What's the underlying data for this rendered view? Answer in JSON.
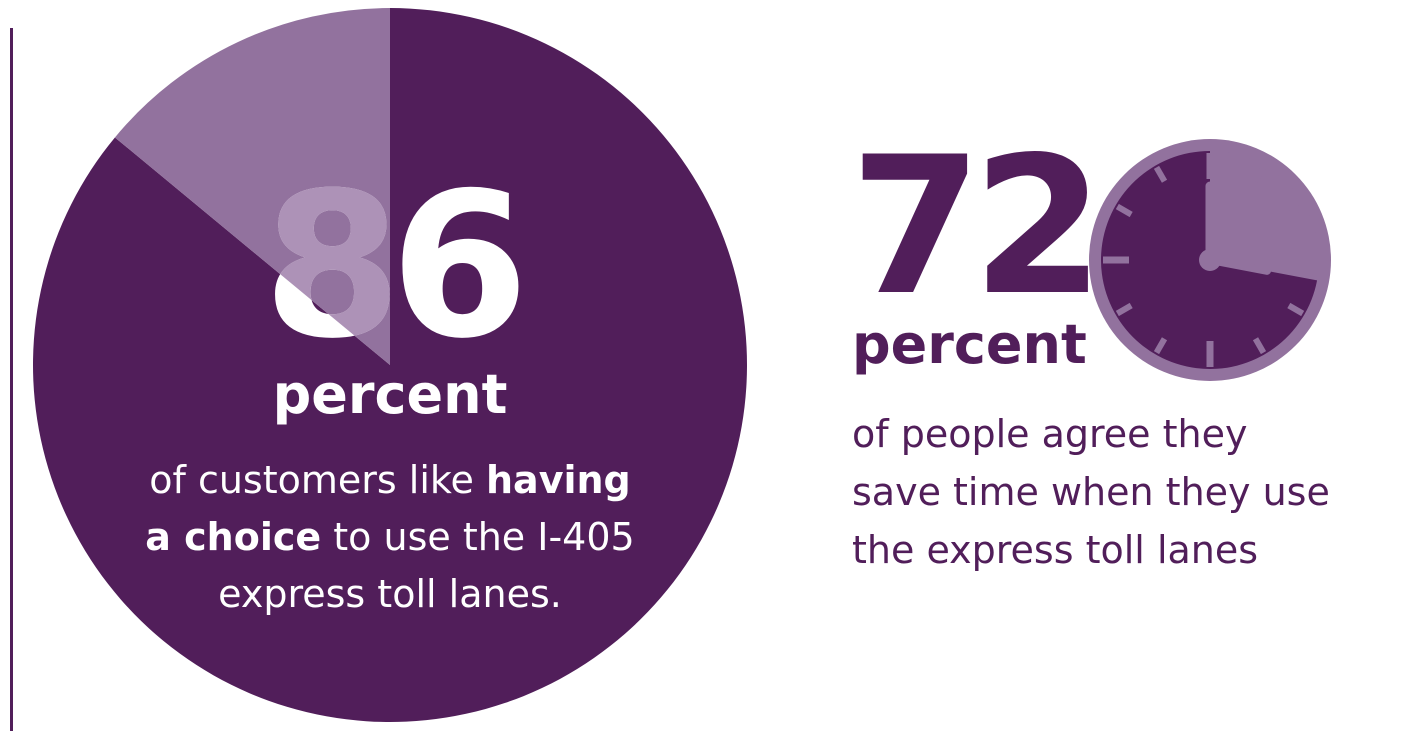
{
  "colors": {
    "dark_purple": "#511e5a",
    "light_purple": "#92729e",
    "white": "#ffffff",
    "divider": "#511e5a"
  },
  "chart_data": [
    {
      "type": "pie",
      "slices": [
        {
          "value": 86,
          "color": "#511e5a"
        },
        {
          "value": 14,
          "color": "#92729e"
        }
      ],
      "big_number": "86",
      "unit_word": "percent",
      "description_lines": [
        [
          {
            "text": "of customers like ",
            "bold": false
          },
          {
            "text": "having",
            "bold": true
          }
        ],
        [
          {
            "text": "a choice",
            "bold": true
          },
          {
            "text": " to use the I-405",
            "bold": false
          }
        ],
        [
          {
            "text": "express toll lanes.",
            "bold": false
          }
        ]
      ]
    },
    {
      "type": "pie",
      "icon": "clock-icon",
      "value": 72,
      "big_number": "72",
      "unit_word": "percent",
      "description_lines": [
        "of people agree they",
        "save time when they use",
        "the express toll lanes"
      ]
    }
  ]
}
